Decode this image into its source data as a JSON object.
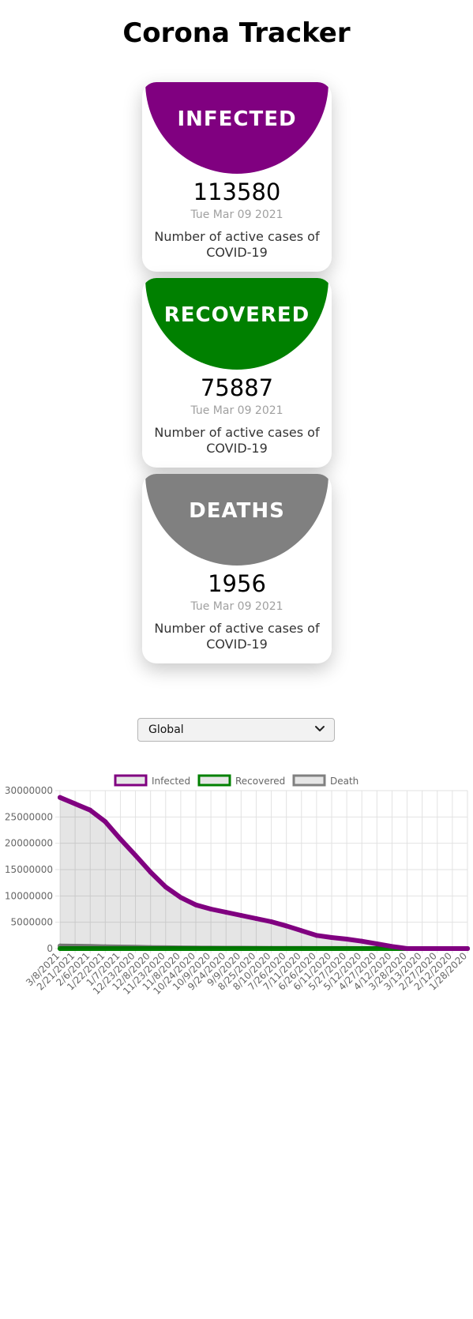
{
  "app": {
    "title": "Corona Tracker"
  },
  "cards": [
    {
      "label": "INFECTED",
      "value": "113580",
      "date": "Tue Mar 09 2021",
      "description": "Number of active cases of COVID-19",
      "color": "#800080"
    },
    {
      "label": "RECOVERED",
      "value": "75887",
      "date": "Tue Mar 09 2021",
      "description": "Number of active cases of COVID-19",
      "color": "#008000"
    },
    {
      "label": "DEATHS",
      "value": "1956",
      "date": "Tue Mar 09 2021",
      "description": "Number of active cases of COVID-19",
      "color": "#808080"
    }
  ],
  "country_select": {
    "value": "Global",
    "icon": "chevron-down-icon"
  },
  "chart_data": {
    "type": "line",
    "title": "",
    "legend": "top",
    "grid": true,
    "categories": [
      "3/8/2021",
      "2/21/2021",
      "2/6/2021",
      "1/22/2021",
      "1/7/2021",
      "12/23/2020",
      "12/8/2020",
      "11/23/2020",
      "11/8/2020",
      "10/24/2020",
      "10/9/2020",
      "9/24/2020",
      "9/9/2020",
      "8/25/2020",
      "8/10/2020",
      "7/26/2020",
      "7/11/2020",
      "6/26/2020",
      "6/11/2020",
      "5/27/2020",
      "5/12/2020",
      "4/27/2020",
      "4/12/2020",
      "3/28/2020",
      "3/13/2020",
      "2/27/2020",
      "2/12/2020",
      "1/28/2020"
    ],
    "series": [
      {
        "name": "Infected",
        "color": "#800080",
        "values": [
          28700000,
          27500000,
          26300000,
          24100000,
          20800000,
          17700000,
          14500000,
          11700000,
          9700000,
          8300000,
          7500000,
          6900000,
          6300000,
          5700000,
          5100000,
          4300000,
          3400000,
          2500000,
          2100000,
          1800000,
          1400000,
          900000,
          400000,
          0,
          0,
          0,
          0,
          0
        ]
      },
      {
        "name": "Recovered",
        "color": "#008000",
        "values": [
          0,
          0,
          0,
          0,
          0,
          0,
          0,
          0,
          0,
          0,
          0,
          0,
          0,
          0,
          0,
          0,
          0,
          0,
          0,
          0,
          0,
          0,
          0,
          0,
          0,
          0,
          0,
          0
        ]
      },
      {
        "name": "Death",
        "color": "#808080",
        "values": [
          500000,
          450000,
          400000,
          350000,
          300000,
          250000,
          200000,
          160000,
          130000,
          100000,
          90000,
          80000,
          70000,
          60000,
          50000,
          40000,
          30000,
          20000,
          15000,
          10000,
          5000,
          3000,
          1000,
          0,
          0,
          0,
          0,
          0
        ]
      }
    ],
    "yticks": [
      "30000000",
      "25000000",
      "20000000",
      "15000000",
      "10000000",
      "5000000",
      "0"
    ],
    "ylim": [
      0,
      30000000
    ]
  }
}
